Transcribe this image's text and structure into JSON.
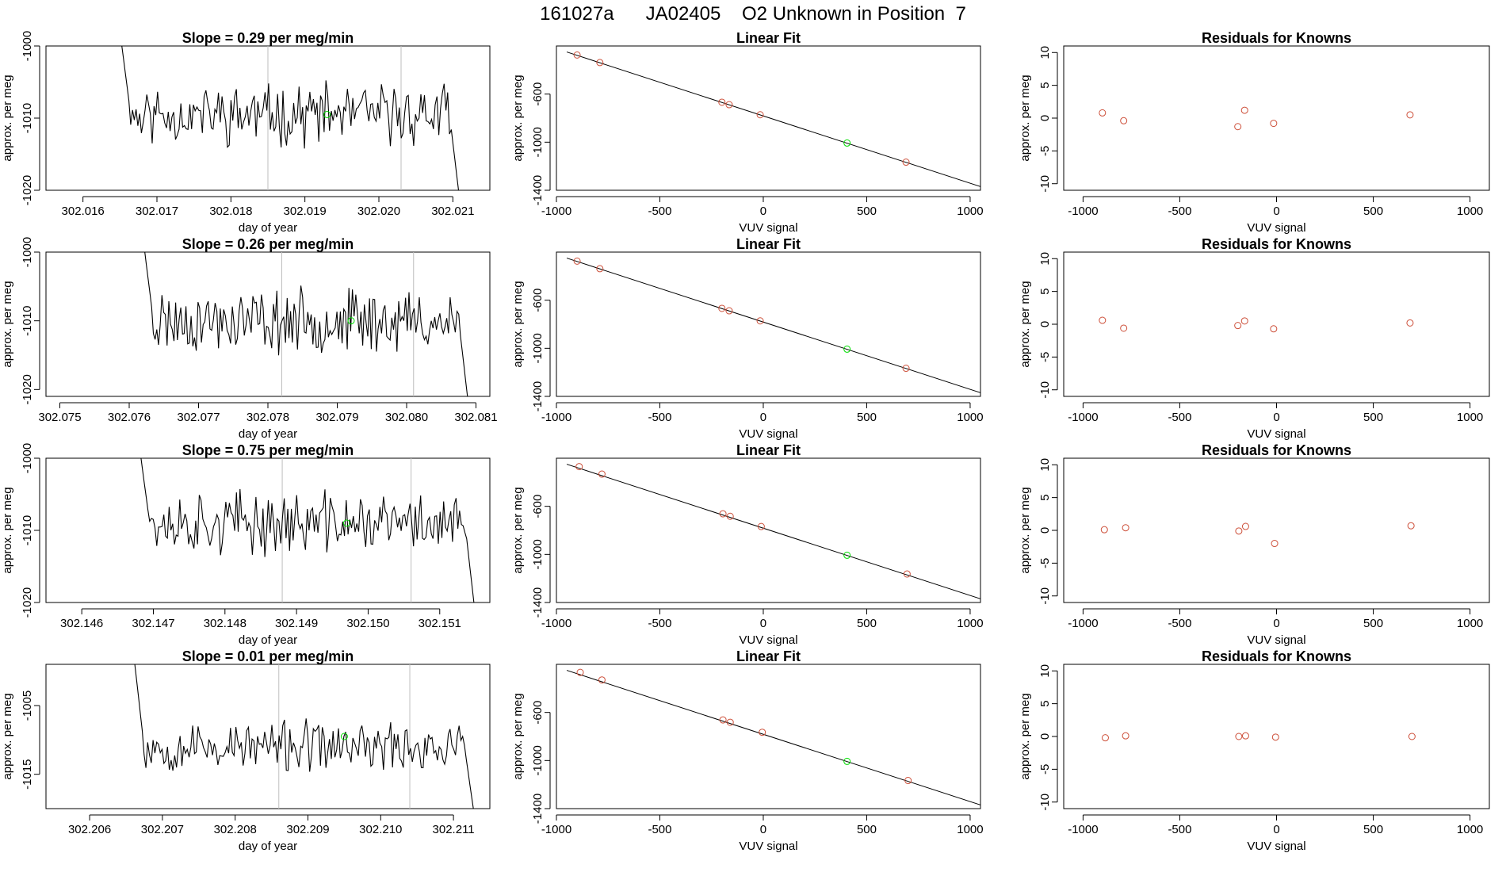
{
  "figure": {
    "title_parts": [
      "161027a",
      "JA02405",
      "O2 Unknown in Position  7"
    ]
  },
  "colors": {
    "line": "#000000",
    "known": "#cd4f39",
    "unknown": "#00dd00",
    "cursor": "#bebebe",
    "frame": "#000000"
  },
  "chart_data": [
    {
      "type": "line",
      "title": "Slope =  0.29  per meg/min",
      "xlabel": "day of year",
      "ylabel": "approx. per meg",
      "xlim": [
        302.0155,
        302.0215
      ],
      "ylim": [
        -1020,
        -1000
      ],
      "xticks": [
        302.016,
        302.017,
        302.018,
        302.019,
        302.02,
        302.021
      ],
      "xtick_labels": [
        "302.016",
        "302.017",
        "302.018",
        "302.019",
        "302.020",
        "302.021"
      ],
      "yticks": [
        -1020,
        -1010,
        -1000
      ],
      "ytick_labels": [
        "-1020",
        "-1010",
        "-1000"
      ],
      "x_start": 302.0165,
      "x_end": 302.0211,
      "level": -1009.5,
      "amplitude": 3.2,
      "vlines": [
        302.0185,
        302.0203
      ],
      "unknown_point": [
        302.0193,
        -1009.5
      ],
      "seed": 11
    },
    {
      "type": "scatter",
      "title": "Linear Fit",
      "xlabel": "VUV signal",
      "ylabel": "approx. per meg",
      "xlim": [
        -1000,
        1050
      ],
      "ylim": [
        -1400,
        -200
      ],
      "xticks": [
        -1000,
        -500,
        0,
        500,
        1000
      ],
      "xtick_labels": [
        "-1000",
        "-500",
        "0",
        "500",
        "1000"
      ],
      "yticks": [
        -1400,
        -1000,
        -600
      ],
      "ytick_labels": [
        "-1400",
        "-1000",
        "-600"
      ],
      "fit_line": [
        [
          -950,
          -250
        ],
        [
          1060,
          -1375
        ]
      ],
      "knowns": [
        [
          -900,
          -275
        ],
        [
          -790,
          -338
        ],
        [
          -200,
          -668
        ],
        [
          -165,
          -688
        ],
        [
          -15,
          -772
        ],
        [
          690,
          -1166
        ]
      ],
      "unknown": [
        [
          405,
          -1007
        ]
      ]
    },
    {
      "type": "scatter",
      "title": "Residuals for Knowns",
      "xlabel": "VUV signal",
      "ylabel": "approx. per meg",
      "xlim": [
        -1100,
        1100
      ],
      "ylim": [
        -11,
        11
      ],
      "xticks": [
        -1000,
        -500,
        0,
        500,
        1000
      ],
      "xtick_labels": [
        "-1000",
        "-500",
        "0",
        "500",
        "1000"
      ],
      "yticks": [
        -10,
        -5,
        0,
        5,
        10
      ],
      "ytick_labels": [
        "-10",
        "-5",
        "0",
        "5",
        "10"
      ],
      "knowns": [
        [
          -900,
          0.8
        ],
        [
          -790,
          -0.4
        ],
        [
          -200,
          -1.3
        ],
        [
          -165,
          1.2
        ],
        [
          -15,
          -0.8
        ],
        [
          690,
          0.5
        ]
      ]
    },
    {
      "type": "line",
      "title": "Slope =  0.26  per meg/min",
      "xlabel": "day of year",
      "ylabel": "approx. per meg",
      "xlim": [
        302.0748,
        302.0812
      ],
      "ylim": [
        -1021,
        -1000
      ],
      "xticks": [
        302.075,
        302.076,
        302.077,
        302.078,
        302.079,
        302.08,
        302.081
      ],
      "xtick_labels": [
        "302.075",
        "302.076",
        "302.077",
        "302.078",
        "302.079",
        "302.080",
        "302.081"
      ],
      "yticks": [
        -1020,
        -1010,
        -1000
      ],
      "ytick_labels": [
        "-1020",
        "-1010",
        "-1000"
      ],
      "x_start": 302.0762,
      "x_end": 302.0809,
      "level": -1010.0,
      "amplitude": 3.5,
      "vlines": [
        302.0782,
        302.0801
      ],
      "unknown_point": [
        302.0792,
        -1010.0
      ],
      "seed": 23
    },
    {
      "type": "scatter",
      "title": "Linear Fit",
      "xlabel": "VUV signal",
      "ylabel": "approx. per meg",
      "xlim": [
        -1000,
        1050
      ],
      "ylim": [
        -1400,
        -200
      ],
      "xticks": [
        -1000,
        -500,
        0,
        500,
        1000
      ],
      "xtick_labels": [
        "-1000",
        "-500",
        "0",
        "500",
        "1000"
      ],
      "yticks": [
        -1400,
        -1000,
        -600
      ],
      "ytick_labels": [
        "-1400",
        "-1000",
        "-600"
      ],
      "fit_line": [
        [
          -950,
          -250
        ],
        [
          1060,
          -1375
        ]
      ],
      "knowns": [
        [
          -900,
          -275
        ],
        [
          -790,
          -338
        ],
        [
          -200,
          -668
        ],
        [
          -165,
          -688
        ],
        [
          -15,
          -772
        ],
        [
          690,
          -1166
        ]
      ],
      "unknown": [
        [
          405,
          -1007
        ]
      ]
    },
    {
      "type": "scatter",
      "title": "Residuals for Knowns",
      "xlabel": "VUV signal",
      "ylabel": "approx. per meg",
      "xlim": [
        -1100,
        1100
      ],
      "ylim": [
        -11,
        11
      ],
      "xticks": [
        -1000,
        -500,
        0,
        500,
        1000
      ],
      "xtick_labels": [
        "-1000",
        "-500",
        "0",
        "500",
        "1000"
      ],
      "yticks": [
        -10,
        -5,
        0,
        5,
        10
      ],
      "ytick_labels": [
        "-10",
        "-5",
        "0",
        "5",
        "10"
      ],
      "knowns": [
        [
          -900,
          0.6
        ],
        [
          -790,
          -0.6
        ],
        [
          -200,
          -0.2
        ],
        [
          -165,
          0.5
        ],
        [
          -15,
          -0.7
        ],
        [
          690,
          0.2
        ]
      ]
    },
    {
      "type": "line",
      "title": "Slope =  0.75  per meg/min",
      "xlabel": "day of year",
      "ylabel": "approx. per meg",
      "xlim": [
        302.1455,
        302.1517
      ],
      "ylim": [
        -1020,
        -1000
      ],
      "xticks": [
        302.146,
        302.147,
        302.148,
        302.149,
        302.15,
        302.151
      ],
      "xtick_labels": [
        "302.146",
        "302.147",
        "302.148",
        "302.149",
        "302.150",
        "302.151"
      ],
      "yticks": [
        -1020,
        -1010,
        -1000
      ],
      "ytick_labels": [
        "-1020",
        "-1010",
        "-1000"
      ],
      "x_start": 302.1468,
      "x_end": 302.1515,
      "level": -1009.0,
      "amplitude": 3.3,
      "vlines": [
        302.1488,
        302.1506
      ],
      "unknown_point": [
        302.1497,
        -1009.0
      ],
      "seed": 37
    },
    {
      "type": "scatter",
      "title": "Linear Fit",
      "xlabel": "VUV signal",
      "ylabel": "approx. per meg",
      "xlim": [
        -1000,
        1050
      ],
      "ylim": [
        -1400,
        -200
      ],
      "xticks": [
        -1000,
        -500,
        0,
        500,
        1000
      ],
      "xtick_labels": [
        "-1000",
        "-500",
        "0",
        "500",
        "1000"
      ],
      "yticks": [
        -1400,
        -1000,
        -600
      ],
      "ytick_labels": [
        "-1400",
        "-1000",
        "-600"
      ],
      "fit_line": [
        [
          -950,
          -250
        ],
        [
          1060,
          -1375
        ]
      ],
      "knowns": [
        [
          -890,
          -270
        ],
        [
          -780,
          -332
        ],
        [
          -195,
          -662
        ],
        [
          -160,
          -683
        ],
        [
          -10,
          -768
        ],
        [
          695,
          -1163
        ]
      ],
      "unknown": [
        [
          405,
          -1007
        ]
      ]
    },
    {
      "type": "scatter",
      "title": "Residuals for Knowns",
      "xlabel": "VUV signal",
      "ylabel": "approx. per meg",
      "xlim": [
        -1100,
        1100
      ],
      "ylim": [
        -11,
        11
      ],
      "xticks": [
        -1000,
        -500,
        0,
        500,
        1000
      ],
      "xtick_labels": [
        "-1000",
        "-500",
        "0",
        "500",
        "1000"
      ],
      "yticks": [
        -10,
        -5,
        0,
        5,
        10
      ],
      "ytick_labels": [
        "-10",
        "-5",
        "0",
        "5",
        "10"
      ],
      "knowns": [
        [
          -890,
          0.1
        ],
        [
          -780,
          0.4
        ],
        [
          -195,
          -0.1
        ],
        [
          -160,
          0.6
        ],
        [
          -10,
          -2.0
        ],
        [
          695,
          0.7
        ]
      ]
    },
    {
      "type": "line",
      "title": "Slope =  0.01  per meg/min",
      "xlabel": "day of year",
      "ylabel": "approx. per meg",
      "xlim": [
        302.2054,
        302.2115
      ],
      "ylim": [
        -1020,
        -999
      ],
      "xticks": [
        302.206,
        302.207,
        302.208,
        302.209,
        302.21,
        302.211
      ],
      "xtick_labels": [
        "302.206",
        "302.207",
        "302.208",
        "302.209",
        "302.210",
        "302.211"
      ],
      "yticks": [
        -1015,
        -1005
      ],
      "ytick_labels": [
        "-1015",
        "-1005"
      ],
      "x_start": 302.2066,
      "x_end": 302.2113,
      "level": -1011.0,
      "amplitude": 2.8,
      "vlines": [
        302.2086,
        302.2104
      ],
      "unknown_point": [
        302.2095,
        -1009.5
      ],
      "seed": 53
    },
    {
      "type": "scatter",
      "title": "Linear Fit",
      "xlabel": "VUV signal",
      "ylabel": "approx. per meg",
      "xlim": [
        -1000,
        1050
      ],
      "ylim": [
        -1400,
        -200
      ],
      "xticks": [
        -1000,
        -500,
        0,
        500,
        1000
      ],
      "xtick_labels": [
        "-1000",
        "-500",
        "0",
        "500",
        "1000"
      ],
      "yticks": [
        -1400,
        -1000,
        -600
      ],
      "ytick_labels": [
        "-1400",
        "-1000",
        "-600"
      ],
      "fit_line": [
        [
          -950,
          -250
        ],
        [
          1060,
          -1375
        ]
      ],
      "knowns": [
        [
          -885,
          -267
        ],
        [
          -780,
          -330
        ],
        [
          -195,
          -662
        ],
        [
          -160,
          -682
        ],
        [
          -5,
          -765
        ],
        [
          700,
          -1166
        ]
      ],
      "unknown": [
        [
          405,
          -1007
        ]
      ]
    },
    {
      "type": "scatter",
      "title": "Residuals for Knowns",
      "xlabel": "VUV signal",
      "ylabel": "approx. per meg",
      "xlim": [
        -1100,
        1100
      ],
      "ylim": [
        -11,
        11
      ],
      "xticks": [
        -1000,
        -500,
        0,
        500,
        1000
      ],
      "xtick_labels": [
        "-1000",
        "-500",
        "0",
        "500",
        "1000"
      ],
      "yticks": [
        -10,
        -5,
        0,
        5,
        10
      ],
      "ytick_labels": [
        "-10",
        "-5",
        "0",
        "5",
        "10"
      ],
      "knowns": [
        [
          -885,
          -0.2
        ],
        [
          -780,
          0.1
        ],
        [
          -195,
          0.0
        ],
        [
          -160,
          0.1
        ],
        [
          -5,
          -0.1
        ],
        [
          700,
          0.0
        ]
      ]
    }
  ]
}
